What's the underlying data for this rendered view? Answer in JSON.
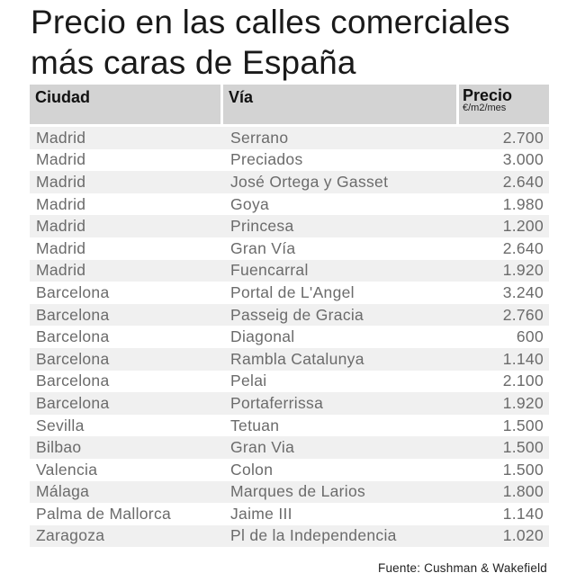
{
  "title": "Precio en las calles comerciales más caras de España",
  "table": {
    "headers": {
      "city": "Ciudad",
      "street": "Vía",
      "price": "Precio",
      "price_unit": "€/m2/mes"
    },
    "rows": [
      {
        "city": "Madrid",
        "street": "Serrano",
        "price": "2.700"
      },
      {
        "city": "Madrid",
        "street": "Preciados",
        "price": "3.000"
      },
      {
        "city": "Madrid",
        "street": "José Ortega y Gasset",
        "price": "2.640"
      },
      {
        "city": "Madrid",
        "street": "Goya",
        "price": "1.980"
      },
      {
        "city": "Madrid",
        "street": "Princesa",
        "price": "1.200"
      },
      {
        "city": "Madrid",
        "street": "Gran Vía",
        "price": "2.640"
      },
      {
        "city": "Madrid",
        "street": "Fuencarral",
        "price": "1.920"
      },
      {
        "city": "Barcelona",
        "street": "Portal de L'Angel",
        "price": "3.240"
      },
      {
        "city": "Barcelona",
        "street": "Passeig de Gracia",
        "price": "2.760"
      },
      {
        "city": "Barcelona",
        "street": "Diagonal",
        "price": "600"
      },
      {
        "city": "Barcelona",
        "street": "Rambla Catalunya",
        "price": "1.140"
      },
      {
        "city": "Barcelona",
        "street": "Pelai",
        "price": "2.100"
      },
      {
        "city": "Barcelona",
        "street": "Portaferrissa",
        "price": "1.920"
      },
      {
        "city": "Sevilla",
        "street": "Tetuan",
        "price": "1.500"
      },
      {
        "city": "Bilbao",
        "street": "Gran Via",
        "price": "1.500"
      },
      {
        "city": "Valencia",
        "street": "Colon",
        "price": "1.500"
      },
      {
        "city": "Málaga",
        "street": "Marques de Larios",
        "price": "1.800"
      },
      {
        "city": "Palma de Mallorca",
        "street": "Jaime III",
        "price": "1.140"
      },
      {
        "city": "Zaragoza",
        "street": "Pl de la Independencia",
        "price": "1.020"
      }
    ]
  },
  "source": "Fuente: Cushman & Wakefield"
}
